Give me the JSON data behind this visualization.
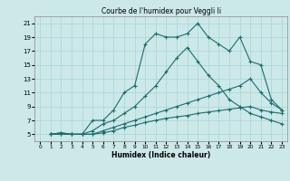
{
  "title": "Courbe de l'humidex pour Veggli Ii",
  "xlabel": "Humidex (Indice chaleur)",
  "bg_color": "#cce8e8",
  "line_color": "#1a6e6e",
  "grid_color": "#aad4d4",
  "xlim": [
    -0.5,
    23.5
  ],
  "ylim": [
    4,
    22
  ],
  "xticks": [
    0,
    1,
    2,
    3,
    4,
    5,
    6,
    7,
    8,
    9,
    10,
    11,
    12,
    13,
    14,
    15,
    16,
    17,
    18,
    19,
    20,
    21,
    22,
    23
  ],
  "yticks": [
    5,
    7,
    9,
    11,
    13,
    15,
    17,
    19,
    21
  ],
  "lines": [
    {
      "x": [
        1,
        2,
        3,
        4,
        5,
        6,
        7,
        8,
        9,
        10,
        11,
        12,
        13,
        14,
        15,
        16,
        17,
        18,
        19,
        20,
        21,
        22,
        23
      ],
      "y": [
        5,
        5.2,
        5,
        5,
        7,
        7,
        8.5,
        11,
        12,
        18,
        19.5,
        19,
        19,
        19.5,
        21,
        19,
        18,
        17,
        19,
        15.5,
        15,
        10,
        8.5
      ]
    },
    {
      "x": [
        1,
        2,
        3,
        4,
        5,
        6,
        7,
        8,
        9,
        10,
        11,
        12,
        13,
        14,
        15,
        16,
        17,
        18,
        19,
        20,
        21,
        22,
        23
      ],
      "y": [
        5,
        5.2,
        5,
        5,
        5.5,
        6.5,
        7,
        8,
        9,
        10.5,
        12,
        14,
        16,
        17.5,
        15.5,
        13.5,
        12,
        10,
        9,
        8,
        7.5,
        7,
        6.5
      ]
    },
    {
      "x": [
        1,
        2,
        3,
        4,
        5,
        6,
        7,
        8,
        9,
        10,
        11,
        12,
        13,
        14,
        15,
        16,
        17,
        18,
        19,
        20,
        21,
        22,
        23
      ],
      "y": [
        5,
        5,
        5,
        5,
        5,
        5.5,
        6,
        6.5,
        7,
        7.5,
        8,
        8.5,
        9,
        9.5,
        10,
        10.5,
        11,
        11.5,
        12,
        13,
        11,
        9.5,
        8.5
      ]
    },
    {
      "x": [
        1,
        2,
        3,
        4,
        5,
        6,
        7,
        8,
        9,
        10,
        11,
        12,
        13,
        14,
        15,
        16,
        17,
        18,
        19,
        20,
        21,
        22,
        23
      ],
      "y": [
        5,
        5,
        5,
        5,
        5,
        5.2,
        5.5,
        6,
        6.3,
        6.7,
        7.0,
        7.3,
        7.5,
        7.7,
        8,
        8.2,
        8.4,
        8.6,
        8.8,
        9,
        8.5,
        8.2,
        8
      ]
    }
  ]
}
